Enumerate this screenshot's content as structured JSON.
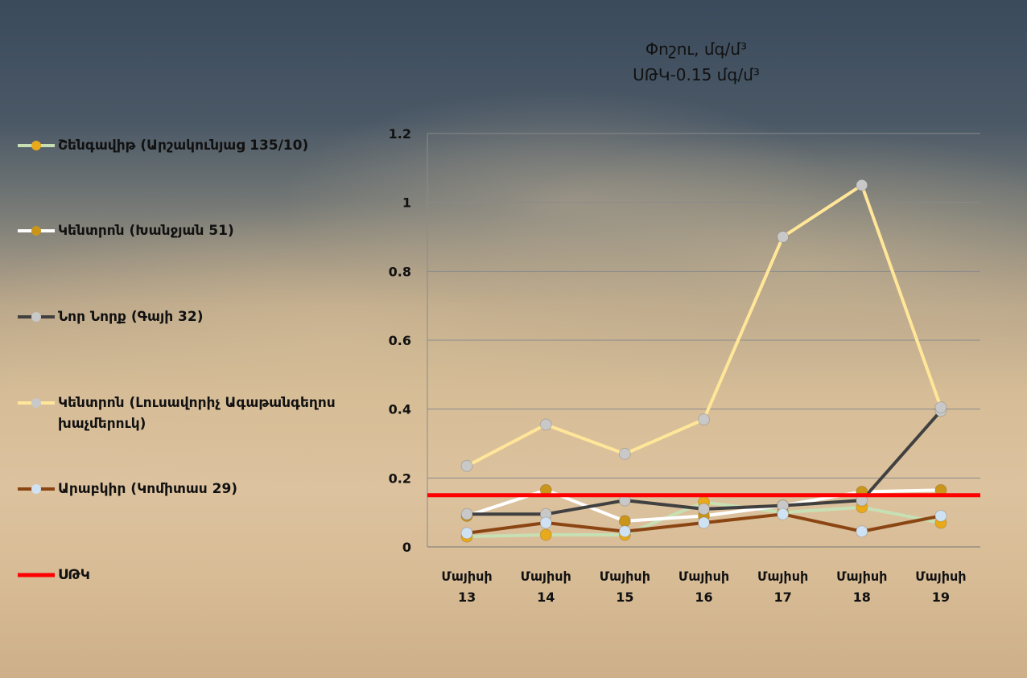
{
  "chart_data": {
    "type": "line",
    "title": "Փոշու, մգ/մ³",
    "subtitle": "ՍԹԿ-0.15 մգ/մ³",
    "categories": [
      "Մայիսի 13",
      "Մայիսի 14",
      "Մայիսի 15",
      "Մայիսի 16",
      "Մայիսի 17",
      "Մայիսի 18",
      "Մայիսի 19"
    ],
    "category_lines": [
      [
        "Մայիսի",
        "13"
      ],
      [
        "Մայիսի",
        "14"
      ],
      [
        "Մայիսի",
        "15"
      ],
      [
        "Մայիսի",
        "16"
      ],
      [
        "Մայիսի",
        "17"
      ],
      [
        "Մայիսի",
        "18"
      ],
      [
        "Մայիսի",
        "19"
      ]
    ],
    "ylim": [
      0,
      1.2
    ],
    "yticks": [
      0,
      0.2,
      0.4,
      0.6,
      0.8,
      1,
      1.2
    ],
    "ytick_labels": [
      "0",
      "0.2",
      "0.4",
      "0.6",
      "0.8",
      "1",
      "1.2"
    ],
    "grid": true,
    "legend_position": "left",
    "series": [
      {
        "name": "Շենգավիթ (Արշակունյաց 135/10)",
        "line_color": "#c6e0b4",
        "marker_color": "#e8a91a",
        "values": [
          0.03,
          0.035,
          0.035,
          0.13,
          0.1,
          0.115,
          0.07
        ]
      },
      {
        "name": "Կենտրոն (Խանջյան 51)",
        "line_color": "#ffffff",
        "marker_color": "#c9951a",
        "values": [
          0.09,
          0.165,
          0.075,
          0.09,
          0.12,
          0.16,
          0.165
        ]
      },
      {
        "name": "Նոր Նորք (Գայի 32)",
        "line_color": "#404040",
        "marker_color": "#c8c8c8",
        "values": [
          0.095,
          0.095,
          0.135,
          0.11,
          0.12,
          0.135,
          0.395
        ]
      },
      {
        "name": "Կենտրոն (Լուսավորիչ Ագաթանգեղոս խաչմերուկ)",
        "line_color": "#ffe699",
        "marker_color": "#c8c8c8",
        "values": [
          0.235,
          0.355,
          0.27,
          0.37,
          0.9,
          1.05,
          0.405
        ]
      },
      {
        "name": "Արաբկիր (Կոմիտաս 29)",
        "line_color": "#8b4513",
        "marker_color": "#cfe2f3",
        "values": [
          0.04,
          0.07,
          0.045,
          0.07,
          0.095,
          0.045,
          0.09
        ]
      }
    ],
    "threshold": {
      "name": "ՍԹԿ",
      "value": 0.15,
      "color": "#ff0000"
    }
  }
}
